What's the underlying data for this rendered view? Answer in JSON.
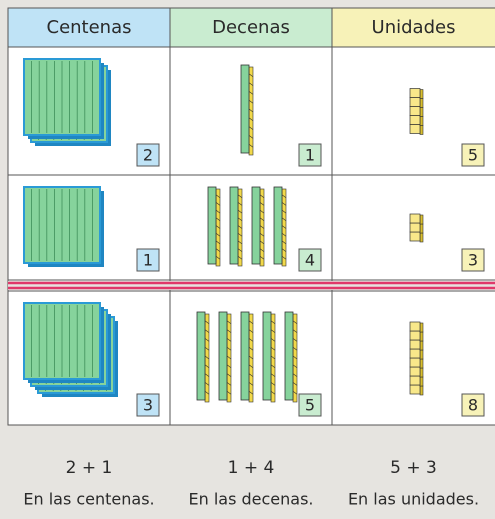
{
  "headers": [
    "Centenas",
    "Decenas",
    "Unidades"
  ],
  "rows": [
    [
      2,
      1,
      5
    ],
    [
      1,
      4,
      3
    ],
    [
      3,
      5,
      8
    ]
  ],
  "sums": [
    {
      "expr": "2 + 1",
      "label": "En las centenas."
    },
    {
      "expr": "1 + 4",
      "label": "En las decenas."
    },
    {
      "expr": "5 + 3",
      "label": "En las unidades."
    }
  ]
}
